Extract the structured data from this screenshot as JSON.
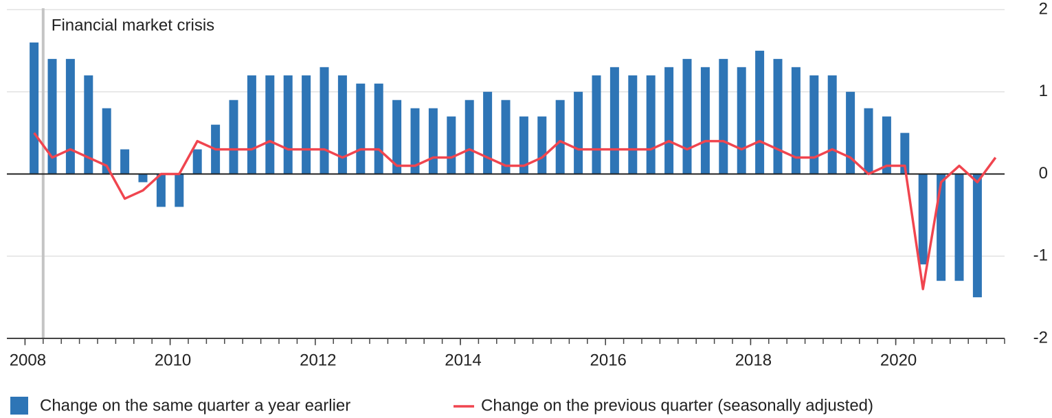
{
  "chart_data": {
    "type": "bar_line",
    "annotation": {
      "text": "Financial market crisis",
      "x": 2008.25
    },
    "x": [
      2008.125,
      2008.375,
      2008.625,
      2008.875,
      2009.125,
      2009.375,
      2009.625,
      2009.875,
      2010.125,
      2010.375,
      2010.625,
      2010.875,
      2011.125,
      2011.375,
      2011.625,
      2011.875,
      2012.125,
      2012.375,
      2012.625,
      2012.875,
      2013.125,
      2013.375,
      2013.625,
      2013.875,
      2014.125,
      2014.375,
      2014.625,
      2014.875,
      2015.125,
      2015.375,
      2015.625,
      2015.875,
      2016.125,
      2016.375,
      2016.625,
      2016.875,
      2017.125,
      2017.375,
      2017.625,
      2017.875,
      2018.125,
      2018.375,
      2018.625,
      2018.875,
      2019.125,
      2019.375,
      2019.625,
      2019.875,
      2020.125,
      2020.375,
      2020.625,
      2020.875,
      2021.125,
      2021.375
    ],
    "series": [
      {
        "name": "Change on the same quarter a year earlier",
        "type": "bar",
        "color": "#2e75b6",
        "values": [
          1.6,
          1.4,
          1.4,
          1.2,
          0.8,
          0.3,
          -0.1,
          -0.4,
          -0.4,
          0.3,
          0.6,
          0.9,
          1.2,
          1.2,
          1.2,
          1.2,
          1.3,
          1.2,
          1.1,
          1.1,
          0.9,
          0.8,
          0.8,
          0.7,
          0.9,
          1.0,
          0.9,
          0.7,
          0.7,
          0.9,
          1.0,
          1.2,
          1.3,
          1.2,
          1.2,
          1.3,
          1.4,
          1.3,
          1.4,
          1.3,
          1.5,
          1.4,
          1.3,
          1.2,
          1.2,
          1.0,
          0.8,
          0.7,
          0.5,
          -1.1,
          -1.3,
          -1.3,
          -1.5,
          null
        ]
      },
      {
        "name": "Change on the previous quarter (seasonally adjusted)",
        "type": "line",
        "color": "#f0454f",
        "values": [
          0.5,
          0.2,
          0.3,
          0.2,
          0.1,
          -0.3,
          -0.2,
          0.0,
          0.0,
          0.4,
          0.3,
          0.3,
          0.3,
          0.4,
          0.3,
          0.3,
          0.3,
          0.2,
          0.3,
          0.3,
          0.1,
          0.1,
          0.2,
          0.2,
          0.3,
          0.2,
          0.1,
          0.1,
          0.2,
          0.4,
          0.3,
          0.3,
          0.3,
          0.3,
          0.3,
          0.4,
          0.3,
          0.4,
          0.4,
          0.3,
          0.4,
          0.3,
          0.2,
          0.2,
          0.3,
          0.2,
          0.0,
          0.1,
          0.1,
          -1.4,
          -0.1,
          0.1,
          -0.1,
          0.2
        ]
      }
    ],
    "xlim": [
      2007.75,
      2021.5
    ],
    "xticks": [
      2008,
      2010,
      2012,
      2014,
      2016,
      2018,
      2020
    ],
    "ylim": [
      -2,
      2
    ],
    "yticks": [
      -2,
      -1,
      0,
      1,
      2
    ],
    "grid": true
  }
}
